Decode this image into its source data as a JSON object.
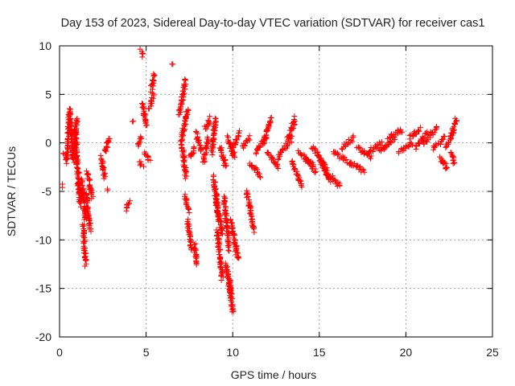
{
  "chart_data": {
    "type": "scatter",
    "title": "Day 153 of 2023, Sidereal Day-to-day VTEC variation (SDTVAR) for receiver cas1",
    "xlabel": "GPS time / hours",
    "ylabel": "SDTVAR / TECUs",
    "xlim": [
      0,
      25
    ],
    "ylim": [
      -20,
      10
    ],
    "xticks": [
      "0",
      "5",
      "10",
      "15",
      "20",
      "25"
    ],
    "yticks": [
      "-20",
      "-15",
      "-10",
      "-5",
      "0",
      "5",
      "10"
    ],
    "grid": true,
    "marker": "plus",
    "series": [
      {
        "name": "SDTVAR",
        "color": "#ff0000",
        "segments": [
          [
            0.15,
            -4.5,
            0.15,
            -4.5
          ],
          [
            0.2,
            -1.2,
            0.4,
            -1.5
          ],
          [
            0.4,
            -2.0,
            0.6,
            3.5
          ],
          [
            0.6,
            3.0,
            0.8,
            -2.0
          ],
          [
            0.8,
            -1.5,
            1.0,
            2.5
          ],
          [
            0.9,
            1.5,
            1.2,
            -6.5
          ],
          [
            1.0,
            -4.0,
            1.3,
            -5.5
          ],
          [
            1.3,
            -4.0,
            1.5,
            -8.0
          ],
          [
            1.35,
            -8.5,
            1.5,
            -12.5
          ],
          [
            1.5,
            -5.0,
            1.8,
            -9.0
          ],
          [
            1.6,
            -3.0,
            1.9,
            -5.5
          ],
          [
            2.4,
            -1.5,
            2.6,
            -3.5
          ],
          [
            2.6,
            -1.0,
            2.9,
            0.5
          ],
          [
            2.75,
            -4.8,
            2.75,
            -4.8
          ],
          [
            3.9,
            -6.8,
            4.0,
            -6.1
          ],
          [
            4.2,
            2.0,
            4.2,
            2.0
          ],
          [
            4.5,
            -0.2,
            4.7,
            0.6
          ],
          [
            4.6,
            -2.0,
            4.8,
            -2.5
          ],
          [
            4.7,
            9.5,
            4.85,
            9.0
          ],
          [
            4.8,
            4.0,
            5.0,
            1.8
          ],
          [
            4.9,
            -1.0,
            5.2,
            -1.8
          ],
          [
            5.3,
            5.5,
            5.5,
            7.0
          ],
          [
            5.2,
            3.5,
            5.4,
            5.0
          ],
          [
            6.5,
            8.1,
            6.5,
            8.1
          ],
          [
            6.9,
            3.0,
            7.3,
            6.5
          ],
          [
            7.0,
            0.0,
            7.4,
            3.5
          ],
          [
            7.1,
            -0.3,
            7.3,
            -3.5
          ],
          [
            7.2,
            -5.5,
            7.5,
            -7.0
          ],
          [
            7.4,
            -8.0,
            7.6,
            -11.0
          ],
          [
            7.5,
            -1.5,
            7.8,
            -0.5
          ],
          [
            7.8,
            -10.5,
            7.9,
            -12.5
          ],
          [
            7.9,
            1.0,
            8.2,
            -0.8
          ],
          [
            8.3,
            -2.0,
            8.6,
            0.5
          ],
          [
            8.4,
            1.5,
            8.7,
            2.5
          ],
          [
            8.8,
            -1.0,
            9.0,
            2.5
          ],
          [
            8.9,
            -3.5,
            9.2,
            -8.0
          ],
          [
            9.0,
            -5.5,
            9.4,
            -9.5
          ],
          [
            9.1,
            -9.0,
            9.4,
            -14.0
          ],
          [
            9.3,
            -0.5,
            9.6,
            -2.5
          ],
          [
            9.5,
            -5.5,
            9.8,
            -11.0
          ],
          [
            9.6,
            -12.5,
            9.9,
            -15.5
          ],
          [
            9.8,
            -14.0,
            10.0,
            -17.5
          ],
          [
            9.9,
            -8.0,
            10.3,
            -12.0
          ],
          [
            9.7,
            0.5,
            10.1,
            -1.5
          ],
          [
            10.0,
            -0.5,
            10.4,
            1.0
          ],
          [
            10.6,
            -0.5,
            11.0,
            0.5
          ],
          [
            10.8,
            -5.0,
            11.2,
            -9.0
          ],
          [
            11.0,
            -2.0,
            11.6,
            -3.5
          ],
          [
            11.3,
            -1.0,
            11.9,
            0.5
          ],
          [
            11.8,
            0.0,
            12.2,
            2.5
          ],
          [
            12.0,
            -1.0,
            12.6,
            -2.5
          ],
          [
            12.6,
            -1.5,
            13.4,
            0.5
          ],
          [
            13.2,
            0.5,
            13.6,
            2.5
          ],
          [
            13.4,
            -2.0,
            14.0,
            -4.5
          ],
          [
            13.8,
            -1.0,
            14.6,
            -2.0
          ],
          [
            14.2,
            -1.5,
            14.8,
            -3.0
          ],
          [
            14.6,
            -0.5,
            15.4,
            -2.5
          ],
          [
            15.0,
            -1.5,
            15.6,
            -4.0
          ],
          [
            15.4,
            -3.0,
            16.2,
            -4.5
          ],
          [
            15.8,
            -1.0,
            16.8,
            -2.0
          ],
          [
            16.3,
            -0.5,
            17.0,
            0.5
          ],
          [
            16.8,
            -2.0,
            17.6,
            -3.0
          ],
          [
            17.2,
            -0.5,
            18.0,
            -1.5
          ],
          [
            17.8,
            -1.0,
            18.6,
            0.0
          ],
          [
            18.5,
            -1.0,
            19.3,
            0.5
          ],
          [
            19.0,
            0.5,
            19.8,
            1.3
          ],
          [
            19.6,
            -1.0,
            20.4,
            0.0
          ],
          [
            20.2,
            0.5,
            20.8,
            1.5
          ],
          [
            20.6,
            -0.5,
            21.2,
            1.0
          ],
          [
            21.0,
            0.0,
            21.8,
            1.5
          ],
          [
            21.6,
            -0.5,
            22.2,
            0.5
          ],
          [
            22.0,
            -1.5,
            22.4,
            -2.8
          ],
          [
            22.3,
            -0.5,
            22.7,
            1.0
          ],
          [
            22.6,
            -1.0,
            22.8,
            -2.0
          ],
          [
            22.7,
            1.0,
            22.9,
            2.5
          ]
        ]
      }
    ]
  }
}
